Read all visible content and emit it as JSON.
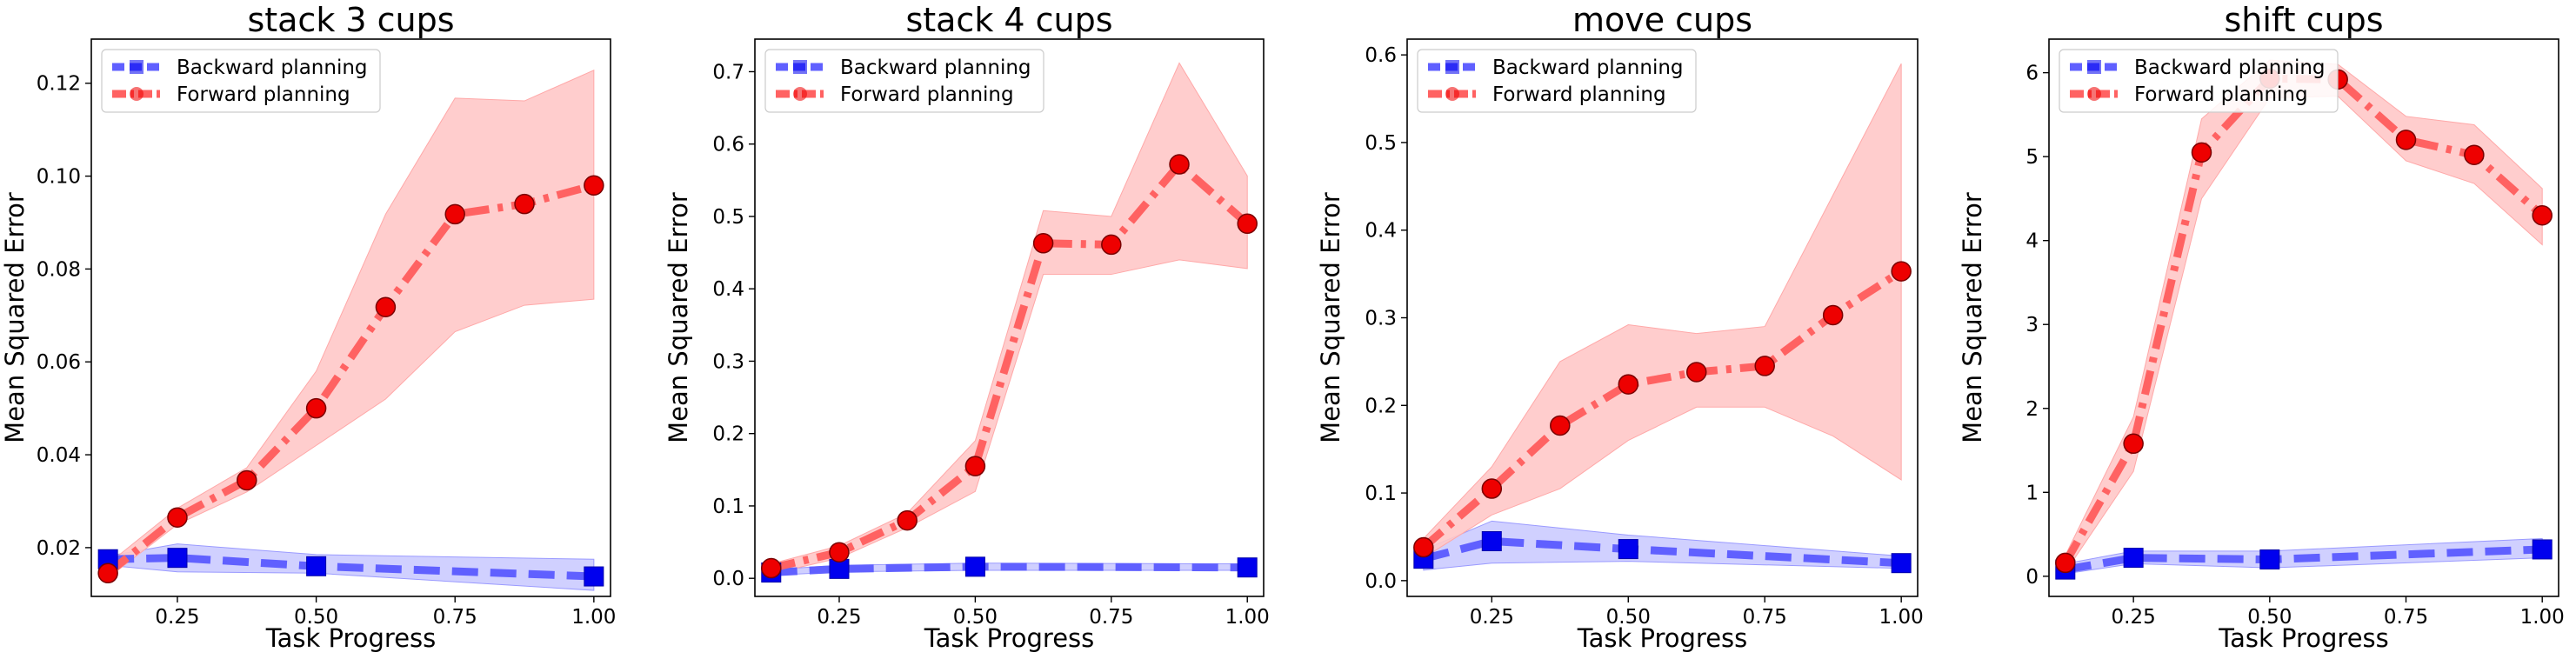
{
  "chart_data": [
    {
      "type": "line",
      "title": "stack 3 cups",
      "xlabel": "Task Progress",
      "ylabel": "Mean Squared Error",
      "xlim": [
        0.095,
        1.03
      ],
      "ylim": [
        0.0095,
        0.1295
      ],
      "xticks": [
        0.25,
        0.5,
        0.75,
        1.0
      ],
      "xtick_labels": [
        "0.25",
        "0.50",
        "0.75",
        "1.00"
      ],
      "yticks": [
        0.02,
        0.04,
        0.06,
        0.08,
        0.1,
        0.12
      ],
      "ytick_labels": [
        "0.02",
        "0.04",
        "0.06",
        "0.08",
        "0.10",
        "0.12"
      ],
      "legend_position": "top-left",
      "series": [
        {
          "name": "Backward planning",
          "x": [
            0.125,
            0.25,
            0.5,
            1.0
          ],
          "values": [
            0.0175,
            0.0178,
            0.016,
            0.0138
          ],
          "lower": [
            0.0162,
            0.0148,
            0.0145,
            0.0108
          ],
          "upper": [
            0.0182,
            0.0208,
            0.0185,
            0.0175
          ]
        },
        {
          "name": "Forward planning",
          "x": [
            0.125,
            0.25,
            0.375,
            0.5,
            0.625,
            0.75,
            0.875,
            1.0
          ],
          "values": [
            0.0145,
            0.0265,
            0.0345,
            0.05,
            0.0718,
            0.0918,
            0.094,
            0.098
          ],
          "lower": [
            0.0135,
            0.025,
            0.032,
            0.042,
            0.052,
            0.0665,
            0.0722,
            0.0735
          ],
          "upper": [
            0.0165,
            0.0285,
            0.0372,
            0.058,
            0.0918,
            0.1168,
            0.1162,
            0.1228
          ]
        }
      ]
    },
    {
      "type": "line",
      "title": "stack 4 cups",
      "xlabel": "Task Progress",
      "ylabel": "Mean Squared Error",
      "xlim": [
        0.095,
        1.03
      ],
      "ylim": [
        -0.025,
        0.745
      ],
      "xticks": [
        0.25,
        0.5,
        0.75,
        1.0
      ],
      "xtick_labels": [
        "0.25",
        "0.50",
        "0.75",
        "1.00"
      ],
      "yticks": [
        0.0,
        0.1,
        0.2,
        0.3,
        0.4,
        0.5,
        0.6,
        0.7
      ],
      "ytick_labels": [
        "0.0",
        "0.1",
        "0.2",
        "0.3",
        "0.4",
        "0.5",
        "0.6",
        "0.7"
      ],
      "legend_position": "top-left",
      "series": [
        {
          "name": "Backward planning",
          "x": [
            0.125,
            0.25,
            0.5,
            1.0
          ],
          "values": [
            0.008,
            0.013,
            0.016,
            0.015
          ],
          "lower": [
            0.004,
            0.009,
            0.011,
            0.011
          ],
          "upper": [
            0.012,
            0.018,
            0.021,
            0.02
          ]
        },
        {
          "name": "Forward planning",
          "x": [
            0.125,
            0.25,
            0.375,
            0.5,
            0.625,
            0.75,
            0.875,
            1.0
          ],
          "values": [
            0.014,
            0.036,
            0.08,
            0.155,
            0.463,
            0.461,
            0.572,
            0.49
          ],
          "lower": [
            0.006,
            0.028,
            0.07,
            0.12,
            0.42,
            0.42,
            0.44,
            0.428
          ],
          "upper": [
            0.02,
            0.045,
            0.09,
            0.19,
            0.508,
            0.5,
            0.712,
            0.556
          ]
        }
      ]
    },
    {
      "type": "line",
      "title": "move cups",
      "xlabel": "Task Progress",
      "ylabel": "Mean Squared Error",
      "xlim": [
        0.095,
        1.03
      ],
      "ylim": [
        -0.018,
        0.618
      ],
      "xticks": [
        0.25,
        0.5,
        0.75,
        1.0
      ],
      "xtick_labels": [
        "0.25",
        "0.50",
        "0.75",
        "1.00"
      ],
      "yticks": [
        0.0,
        0.1,
        0.2,
        0.3,
        0.4,
        0.5,
        0.6
      ],
      "ytick_labels": [
        "0.0",
        "0.1",
        "0.2",
        "0.3",
        "0.4",
        "0.5",
        "0.6"
      ],
      "legend_position": "top-left",
      "series": [
        {
          "name": "Backward planning",
          "x": [
            0.125,
            0.25,
            0.5,
            1.0
          ],
          "values": [
            0.025,
            0.045,
            0.036,
            0.02
          ],
          "lower": [
            0.012,
            0.02,
            0.022,
            0.014
          ],
          "upper": [
            0.035,
            0.068,
            0.052,
            0.028
          ]
        },
        {
          "name": "Forward planning",
          "x": [
            0.125,
            0.25,
            0.375,
            0.5,
            0.625,
            0.75,
            0.875,
            1.0
          ],
          "values": [
            0.038,
            0.105,
            0.177,
            0.224,
            0.238,
            0.245,
            0.303,
            0.353
          ],
          "lower": [
            0.026,
            0.075,
            0.105,
            0.16,
            0.198,
            0.198,
            0.165,
            0.115
          ],
          "upper": [
            0.048,
            0.13,
            0.25,
            0.292,
            0.282,
            0.29,
            0.44,
            0.59
          ]
        }
      ]
    },
    {
      "type": "line",
      "title": "shift cups",
      "xlabel": "Task Progress",
      "ylabel": "Mean Squared Error",
      "xlim": [
        0.095,
        1.03
      ],
      "ylim": [
        -0.24,
        6.4
      ],
      "xticks": [
        0.25,
        0.5,
        0.75,
        1.0
      ],
      "xtick_labels": [
        "0.25",
        "0.50",
        "0.75",
        "1.00"
      ],
      "yticks": [
        0,
        1,
        2,
        3,
        4,
        5,
        6
      ],
      "ytick_labels": [
        "0",
        "1",
        "2",
        "3",
        "4",
        "5",
        "6"
      ],
      "legend_position": "top-left",
      "series": [
        {
          "name": "Backward planning",
          "x": [
            0.125,
            0.25,
            0.5,
            1.0
          ],
          "values": [
            0.08,
            0.22,
            0.2,
            0.32
          ],
          "lower": [
            0.03,
            0.15,
            0.1,
            0.22
          ],
          "upper": [
            0.15,
            0.3,
            0.3,
            0.45
          ]
        },
        {
          "name": "Forward planning",
          "x": [
            0.125,
            0.25,
            0.375,
            0.5,
            0.625,
            0.75,
            0.875,
            1.0
          ],
          "values": [
            0.16,
            1.58,
            5.05,
            5.93,
            5.92,
            5.2,
            5.02,
            4.3
          ],
          "lower": [
            0.05,
            1.25,
            4.5,
            5.7,
            5.72,
            4.95,
            4.68,
            3.95
          ],
          "upper": [
            0.25,
            1.9,
            5.45,
            6.15,
            6.1,
            5.48,
            5.38,
            4.62
          ]
        }
      ]
    }
  ],
  "colors": {
    "backward_line": "#6060ff",
    "backward_marker": "#0000ee",
    "backward_band": "#c8c8ff",
    "forward_line": "#ff6262",
    "forward_marker": "#ee0000",
    "forward_band": "#ffc8c8"
  }
}
